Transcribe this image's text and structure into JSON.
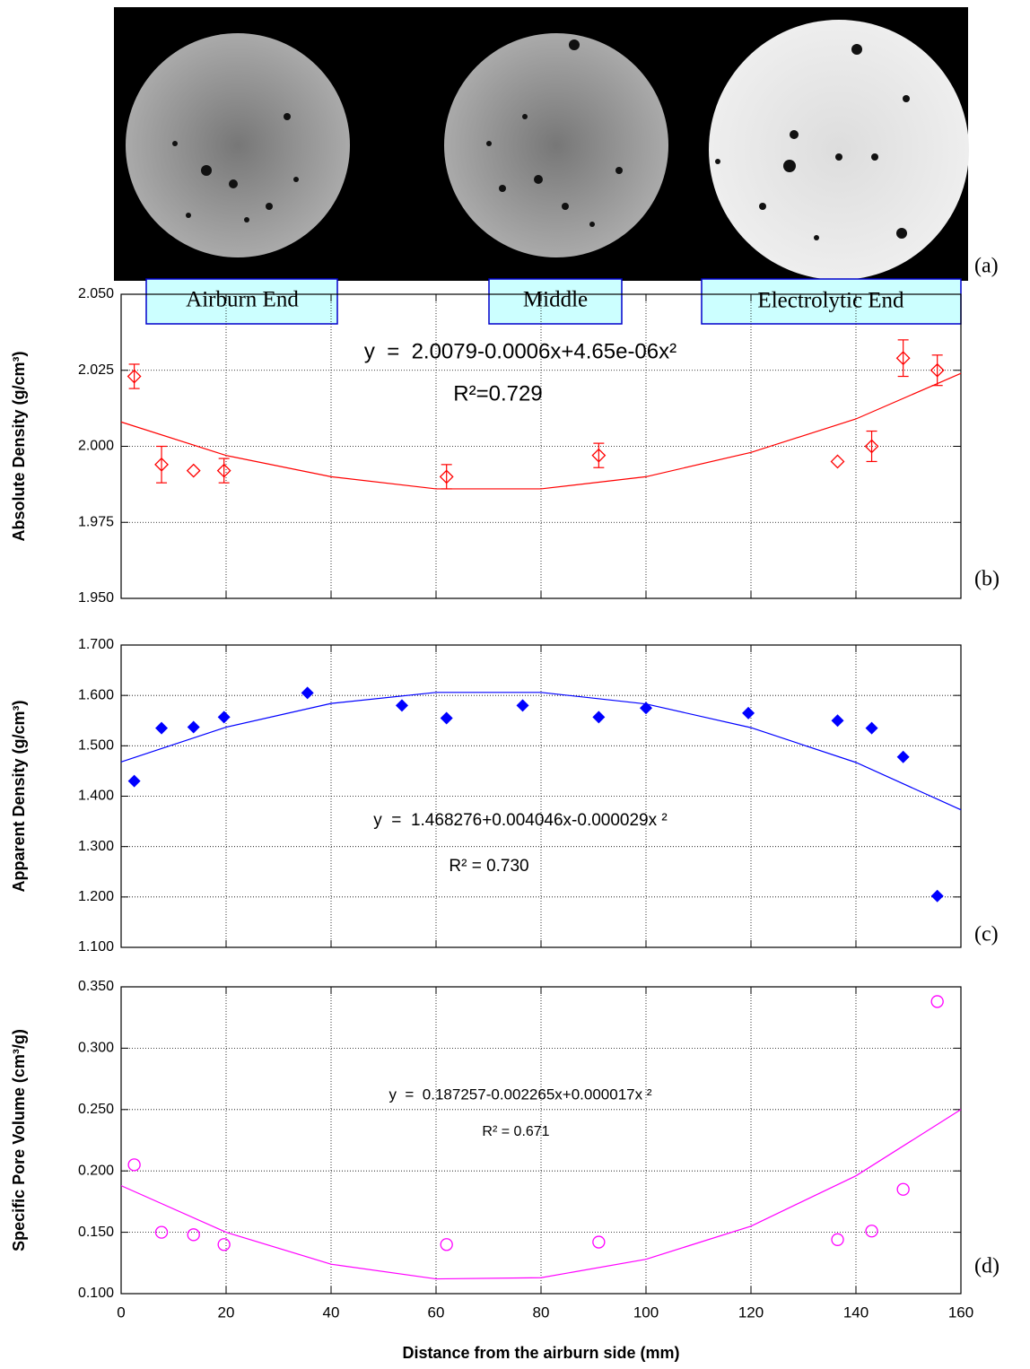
{
  "image": {
    "panel_label": "(a)",
    "regions": [
      "Airburn End",
      "Middle",
      "Electrolytic End"
    ]
  },
  "chart_data": [
    {
      "type": "scatter",
      "panel_label": "(b)",
      "y_label": "Absolute Density (g/cm³)",
      "equation": "y  =  2.0079-0.0006x+4.65e-06x²",
      "r_squared": "R²=0.729",
      "xlim": [
        0,
        160
      ],
      "xticks": [
        0,
        20,
        40,
        60,
        80,
        100,
        120,
        140,
        160
      ],
      "show_xtick_labels": false,
      "ylim": [
        1.95,
        2.05
      ],
      "yticks": [
        {
          "value": 1.95,
          "label": "1.950"
        },
        {
          "value": 1.975,
          "label": "1.975"
        },
        {
          "value": 2.0,
          "label": "2.000"
        },
        {
          "value": 2.025,
          "label": "2.025"
        },
        {
          "value": 2.05,
          "label": "2.050"
        }
      ],
      "grid": true,
      "series": [
        {
          "color": "#ff0000",
          "marker": "diamond-open",
          "x": [
            2.5,
            7.7,
            13.8,
            19.6,
            62,
            91,
            136.5,
            143,
            149,
            155.5
          ],
          "values": [
            2.023,
            1.994,
            1.992,
            1.992,
            1.99,
            1.997,
            1.995,
            2.0,
            2.029,
            2.025
          ],
          "errors": [
            0.004,
            0.006,
            null,
            0.004,
            0.004,
            0.004,
            null,
            0.005,
            0.006,
            0.005
          ]
        }
      ],
      "trend": {
        "color": "#ff0000",
        "x": [
          0,
          20,
          40,
          60,
          80,
          100,
          120,
          140,
          160
        ],
        "values": [
          2.008,
          1.997,
          1.99,
          1.986,
          1.986,
          1.99,
          1.998,
          2.009,
          2.024
        ]
      }
    },
    {
      "type": "scatter",
      "panel_label": "(c)",
      "y_label": "Apparent Density (g/cm³)",
      "equation": "y  =  1.468276+0.004046x-0.000029x ²",
      "r_squared": "R² = 0.730",
      "xlim": [
        0,
        160
      ],
      "xticks": [
        0,
        20,
        40,
        60,
        80,
        100,
        120,
        140,
        160
      ],
      "show_xtick_labels": false,
      "ylim": [
        1.1,
        1.7
      ],
      "yticks": [
        {
          "value": 1.1,
          "label": "1.100"
        },
        {
          "value": 1.2,
          "label": "1.200"
        },
        {
          "value": 1.3,
          "label": "1.300"
        },
        {
          "value": 1.4,
          "label": "1.400"
        },
        {
          "value": 1.5,
          "label": "1.500"
        },
        {
          "value": 1.6,
          "label": "1.600"
        },
        {
          "value": 1.7,
          "label": "1.700"
        }
      ],
      "grid": true,
      "series": [
        {
          "color": "#0000ff",
          "marker": "diamond-filled",
          "x": [
            2.5,
            7.7,
            13.8,
            19.6,
            35.5,
            53.5,
            62,
            76.5,
            91,
            100,
            119.5,
            136.5,
            143,
            149,
            155.5
          ],
          "values": [
            1.43,
            1.535,
            1.537,
            1.557,
            1.605,
            1.58,
            1.555,
            1.58,
            1.557,
            1.575,
            1.565,
            1.55,
            1.535,
            1.478,
            1.202
          ]
        }
      ],
      "trend": {
        "color": "#0000ff",
        "x": [
          0,
          20,
          40,
          60,
          80,
          100,
          120,
          140,
          160
        ],
        "values": [
          1.468,
          1.537,
          1.584,
          1.606,
          1.606,
          1.583,
          1.536,
          1.467,
          1.373
        ]
      }
    },
    {
      "type": "scatter",
      "panel_label": "(d)",
      "y_label": "Specific Pore Volume (cm³/g)",
      "x_label": "Distance from the airburn side (mm)",
      "equation": "y  =  0.187257-0.002265x+0.000017x ²",
      "r_squared": "R² = 0.671",
      "xlim": [
        0,
        160
      ],
      "xticks": [
        0,
        20,
        40,
        60,
        80,
        100,
        120,
        140,
        160
      ],
      "show_xtick_labels": true,
      "ylim": [
        0.1,
        0.35
      ],
      "yticks": [
        {
          "value": 0.1,
          "label": "0.100"
        },
        {
          "value": 0.15,
          "label": "0.150"
        },
        {
          "value": 0.2,
          "label": "0.200"
        },
        {
          "value": 0.25,
          "label": "0.250"
        },
        {
          "value": 0.3,
          "label": "0.300"
        },
        {
          "value": 0.35,
          "label": "0.350"
        }
      ],
      "grid": true,
      "series": [
        {
          "color": "#ff00ff",
          "marker": "circle-open",
          "x": [
            2.5,
            7.7,
            13.8,
            19.6,
            62,
            91,
            136.5,
            143,
            149,
            155.5
          ],
          "values": [
            0.205,
            0.15,
            0.148,
            0.14,
            0.14,
            0.142,
            0.144,
            0.151,
            0.185,
            0.338
          ]
        }
      ],
      "trend": {
        "color": "#ff00ff",
        "x": [
          0,
          20,
          40,
          60,
          80,
          100,
          120,
          140,
          160
        ],
        "values": [
          0.188,
          0.15,
          0.124,
          0.112,
          0.113,
          0.128,
          0.155,
          0.196,
          0.25
        ]
      }
    }
  ]
}
